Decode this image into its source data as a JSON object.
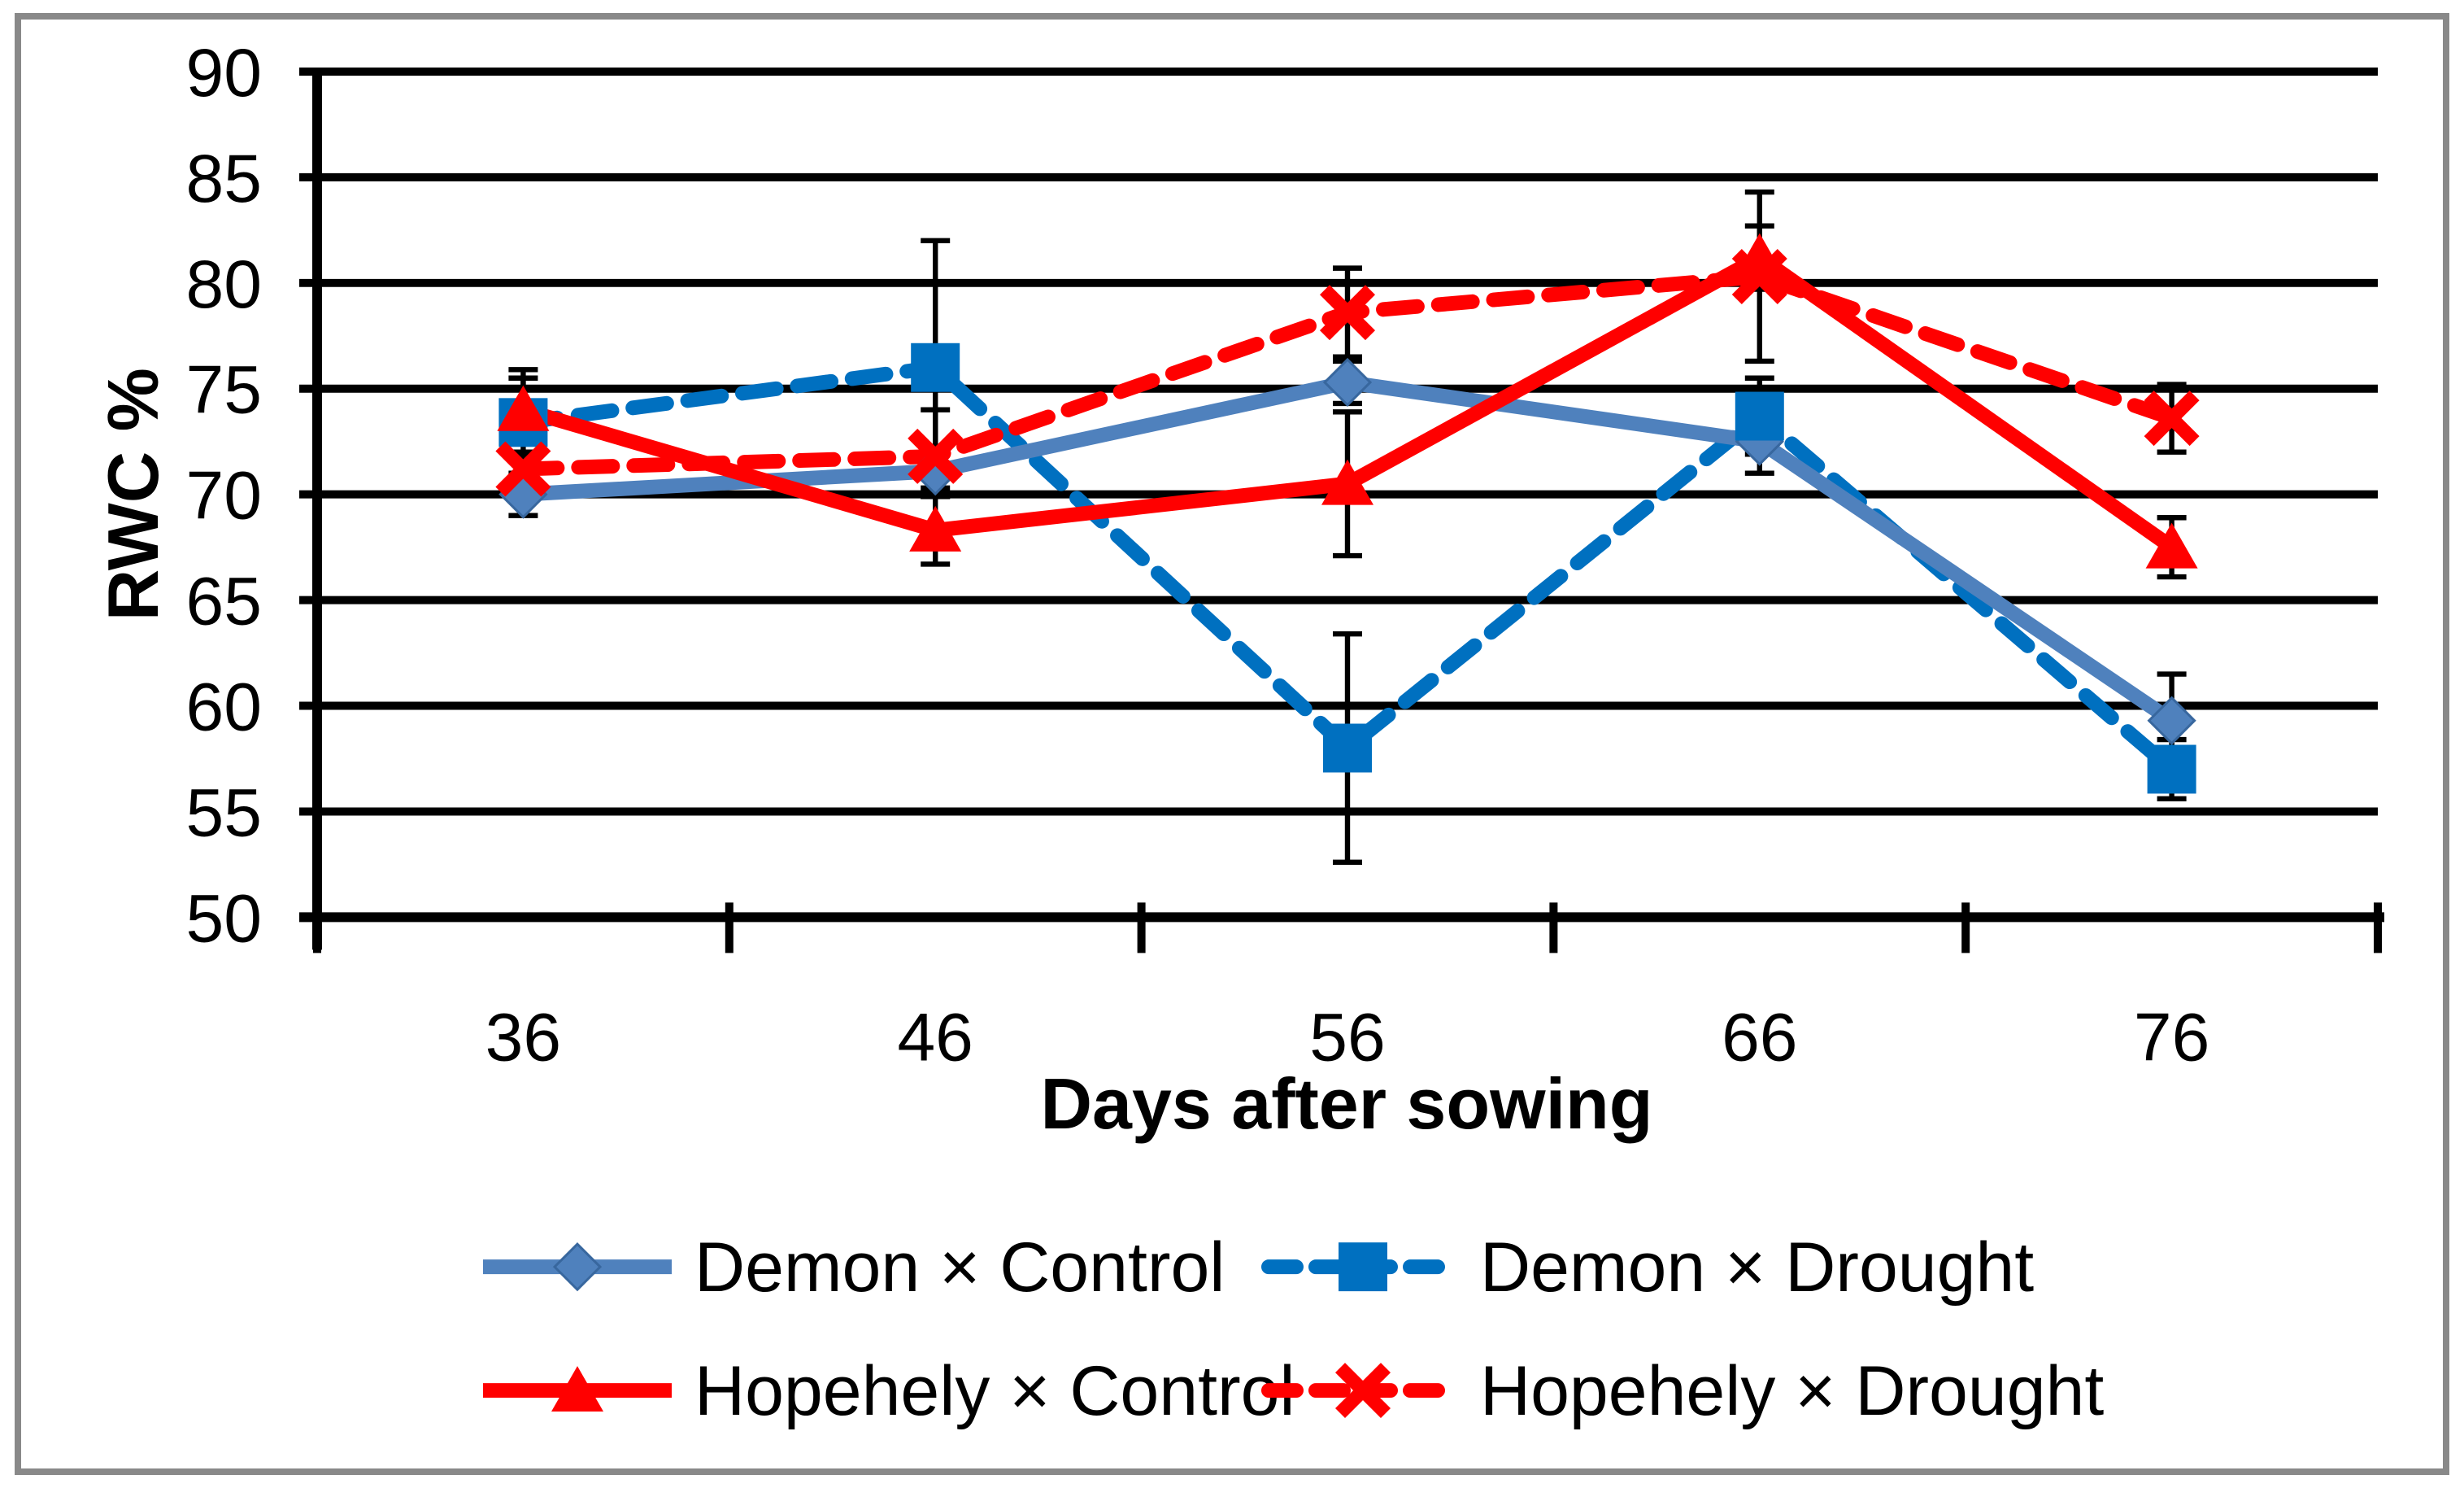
{
  "figure": {
    "background": "#FFFFFF",
    "border_color": "#898989",
    "grid_color": "#000000",
    "error_bar_color": "#000000"
  },
  "chart_data": {
    "type": "line",
    "title": "",
    "xlabel": "Days after sowing",
    "ylabel": "RWC %",
    "categories": [
      "36",
      "46",
      "56",
      "66",
      "76"
    ],
    "ylim": [
      50,
      90
    ],
    "ytick_step": 5,
    "ytick_labels": [
      "50",
      "55",
      "60",
      "65",
      "70",
      "75",
      "80",
      "85",
      "90"
    ],
    "grid": "horizontal",
    "legend_position": "bottom",
    "series": [
      {
        "name": "Demon × Control",
        "color": "#4F81BD",
        "line_style": "solid",
        "marker": "diamond",
        "values": [
          70.0,
          71.1,
          75.3,
          72.5,
          59.3
        ],
        "err_plus": [
          1.0,
          0.8,
          1.0,
          1.5,
          2.2
        ],
        "err_minus": [
          1.0,
          0.8,
          1.0,
          1.5,
          2.2
        ]
      },
      {
        "name": "Demon × Drought",
        "color": "#0070C0",
        "line_style": "dashed",
        "marker": "square",
        "values": [
          73.4,
          76.0,
          58.0,
          73.7,
          57.0
        ],
        "err_plus": [
          2.5,
          6.0,
          5.4,
          1.8,
          1.4
        ],
        "err_minus": [
          1.5,
          6.0,
          5.4,
          1.8,
          1.4
        ]
      },
      {
        "name": "Hopehely × Control",
        "color": "#FF0000",
        "line_style": "solid",
        "marker": "triangle",
        "values": [
          74.0,
          68.3,
          70.5,
          81.2,
          67.5
        ],
        "err_plus": [
          1.5,
          1.6,
          3.4,
          1.5,
          1.4
        ],
        "err_minus": [
          1.5,
          1.6,
          3.4,
          1.5,
          1.4
        ]
      },
      {
        "name": "Hopehely × Drought",
        "color": "#FF0000",
        "line_style": "dashed",
        "marker": "x",
        "values": [
          71.2,
          71.8,
          78.6,
          80.3,
          73.6
        ],
        "err_plus": [
          0.8,
          2.2,
          2.1,
          4.0,
          1.6
        ],
        "err_minus": [
          0.8,
          1.9,
          2.1,
          4.0,
          1.6
        ]
      }
    ],
    "line_draw_order": [
      1,
      0,
      3,
      2
    ],
    "marker_draw_order": [
      0,
      1,
      3,
      2
    ],
    "legend_order": [
      0,
      1,
      2,
      3
    ]
  }
}
